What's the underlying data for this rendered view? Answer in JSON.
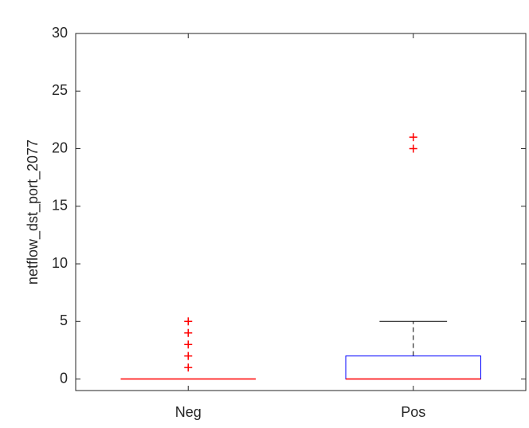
{
  "chart_data": {
    "type": "box",
    "ylabel": "netflow_dst_port_2077",
    "categories": [
      "Neg",
      "Pos"
    ],
    "boxes": [
      {
        "min": 0,
        "q1": 0,
        "median": 0,
        "q3": 0,
        "max": 0,
        "outliers": [
          1,
          2,
          3,
          4,
          5
        ]
      },
      {
        "min": 0,
        "q1": 0,
        "median": 0,
        "q3": 2,
        "max": 5,
        "outliers": [
          20,
          21
        ]
      }
    ],
    "box_color": "#0000ff",
    "median_color": "#ff0000",
    "whisker_color": "#000000",
    "outlier_color": "#ff0000",
    "ylim": [
      -1,
      30
    ],
    "yticks": [
      0,
      5,
      10,
      15,
      20,
      25,
      30
    ]
  }
}
